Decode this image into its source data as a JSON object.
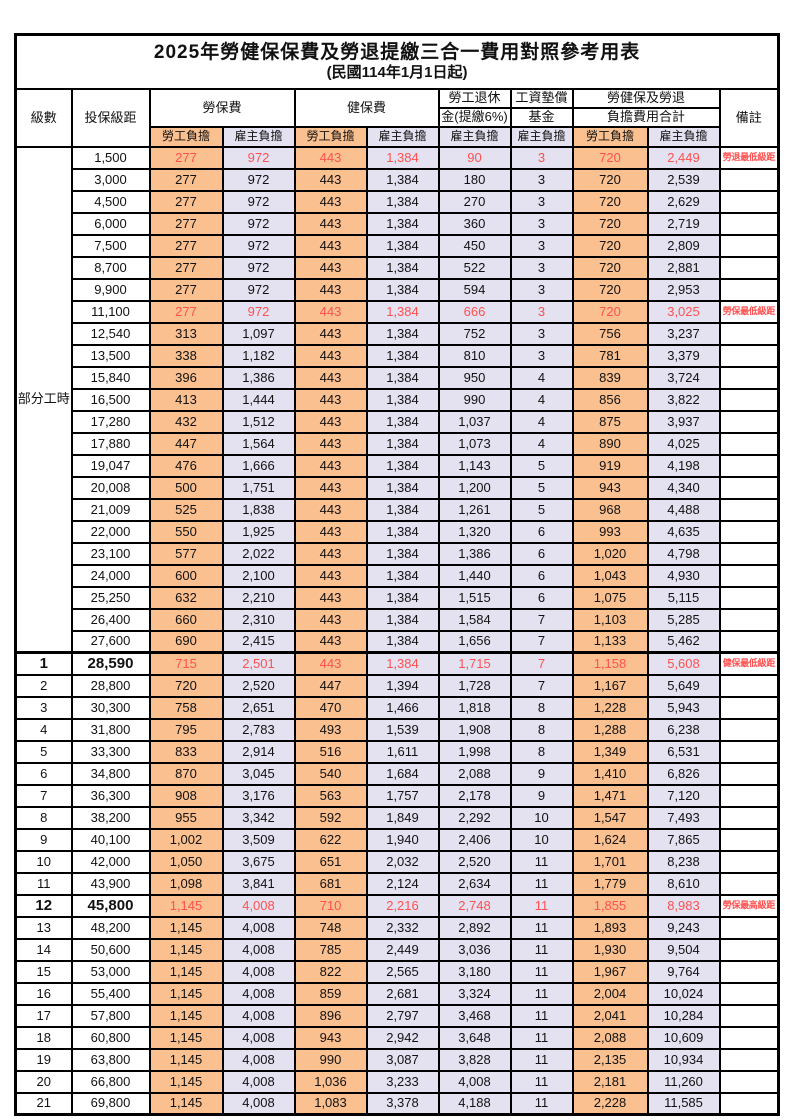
{
  "title": "2025年勞健保保費及勞退提繳三合一費用對照參考用表",
  "subtitle": "(民國114年1月1日起)",
  "colors": {
    "employee_col_bg": "#FAC090",
    "employer_col_bg": "#E4E2F1",
    "highlight_text": "#FF5050",
    "border": "#000000"
  },
  "header": {
    "level": "級數",
    "bracket": "投保級距",
    "labor_insurance": "勞保費",
    "health_insurance": "健保費",
    "pension_line1": "勞工退休",
    "pension_line2": "金(提繳6%)",
    "wage_fund_line1": "工資墊償",
    "wage_fund_line2": "基金",
    "total_line1": "勞健保及勞退",
    "total_line2": "負擔費用合計",
    "remark": "備註",
    "employee_share": "勞工負擔",
    "employer_share": "雇主負擔"
  },
  "group_label": "部分工時",
  "group_rows": 23,
  "rows": [
    {
      "level": "",
      "bracket": "1,500",
      "values": [
        "277",
        "972",
        "443",
        "1,384",
        "90",
        "3",
        "720",
        "2,449"
      ],
      "note": "勞退最低級距",
      "red": true,
      "em": false
    },
    {
      "level": "",
      "bracket": "3,000",
      "values": [
        "277",
        "972",
        "443",
        "1,384",
        "180",
        "3",
        "720",
        "2,539"
      ],
      "note": "",
      "red": false,
      "em": false
    },
    {
      "level": "",
      "bracket": "4,500",
      "values": [
        "277",
        "972",
        "443",
        "1,384",
        "270",
        "3",
        "720",
        "2,629"
      ],
      "note": "",
      "red": false,
      "em": false
    },
    {
      "level": "",
      "bracket": "6,000",
      "values": [
        "277",
        "972",
        "443",
        "1,384",
        "360",
        "3",
        "720",
        "2,719"
      ],
      "note": "",
      "red": false,
      "em": false
    },
    {
      "level": "",
      "bracket": "7,500",
      "values": [
        "277",
        "972",
        "443",
        "1,384",
        "450",
        "3",
        "720",
        "2,809"
      ],
      "note": "",
      "red": false,
      "em": false
    },
    {
      "level": "",
      "bracket": "8,700",
      "values": [
        "277",
        "972",
        "443",
        "1,384",
        "522",
        "3",
        "720",
        "2,881"
      ],
      "note": "",
      "red": false,
      "em": false
    },
    {
      "level": "",
      "bracket": "9,900",
      "values": [
        "277",
        "972",
        "443",
        "1,384",
        "594",
        "3",
        "720",
        "2,953"
      ],
      "note": "",
      "red": false,
      "em": false
    },
    {
      "level": "",
      "bracket": "11,100",
      "values": [
        "277",
        "972",
        "443",
        "1,384",
        "666",
        "3",
        "720",
        "3,025"
      ],
      "note": "勞保最低級距",
      "red": true,
      "em": false
    },
    {
      "level": "",
      "bracket": "12,540",
      "values": [
        "313",
        "1,097",
        "443",
        "1,384",
        "752",
        "3",
        "756",
        "3,237"
      ],
      "note": "",
      "red": false,
      "em": false
    },
    {
      "level": "",
      "bracket": "13,500",
      "values": [
        "338",
        "1,182",
        "443",
        "1,384",
        "810",
        "3",
        "781",
        "3,379"
      ],
      "note": "",
      "red": false,
      "em": false
    },
    {
      "level": "",
      "bracket": "15,840",
      "values": [
        "396",
        "1,386",
        "443",
        "1,384",
        "950",
        "4",
        "839",
        "3,724"
      ],
      "note": "",
      "red": false,
      "em": false
    },
    {
      "level": "",
      "bracket": "16,500",
      "values": [
        "413",
        "1,444",
        "443",
        "1,384",
        "990",
        "4",
        "856",
        "3,822"
      ],
      "note": "",
      "red": false,
      "em": false
    },
    {
      "level": "",
      "bracket": "17,280",
      "values": [
        "432",
        "1,512",
        "443",
        "1,384",
        "1,037",
        "4",
        "875",
        "3,937"
      ],
      "note": "",
      "red": false,
      "em": false
    },
    {
      "level": "",
      "bracket": "17,880",
      "values": [
        "447",
        "1,564",
        "443",
        "1,384",
        "1,073",
        "4",
        "890",
        "4,025"
      ],
      "note": "",
      "red": false,
      "em": false
    },
    {
      "level": "",
      "bracket": "19,047",
      "values": [
        "476",
        "1,666",
        "443",
        "1,384",
        "1,143",
        "5",
        "919",
        "4,198"
      ],
      "note": "",
      "red": false,
      "em": false
    },
    {
      "level": "",
      "bracket": "20,008",
      "values": [
        "500",
        "1,751",
        "443",
        "1,384",
        "1,200",
        "5",
        "943",
        "4,340"
      ],
      "note": "",
      "red": false,
      "em": false
    },
    {
      "level": "",
      "bracket": "21,009",
      "values": [
        "525",
        "1,838",
        "443",
        "1,384",
        "1,261",
        "5",
        "968",
        "4,488"
      ],
      "note": "",
      "red": false,
      "em": false
    },
    {
      "level": "",
      "bracket": "22,000",
      "values": [
        "550",
        "1,925",
        "443",
        "1,384",
        "1,320",
        "6",
        "993",
        "4,635"
      ],
      "note": "",
      "red": false,
      "em": false
    },
    {
      "level": "",
      "bracket": "23,100",
      "values": [
        "577",
        "2,022",
        "443",
        "1,384",
        "1,386",
        "6",
        "1,020",
        "4,798"
      ],
      "note": "",
      "red": false,
      "em": false
    },
    {
      "level": "",
      "bracket": "24,000",
      "values": [
        "600",
        "2,100",
        "443",
        "1,384",
        "1,440",
        "6",
        "1,043",
        "4,930"
      ],
      "note": "",
      "red": false,
      "em": false
    },
    {
      "level": "",
      "bracket": "25,250",
      "values": [
        "632",
        "2,210",
        "443",
        "1,384",
        "1,515",
        "6",
        "1,075",
        "5,115"
      ],
      "note": "",
      "red": false,
      "em": false
    },
    {
      "level": "",
      "bracket": "26,400",
      "values": [
        "660",
        "2,310",
        "443",
        "1,384",
        "1,584",
        "7",
        "1,103",
        "5,285"
      ],
      "note": "",
      "red": false,
      "em": false
    },
    {
      "level": "",
      "bracket": "27,600",
      "values": [
        "690",
        "2,415",
        "443",
        "1,384",
        "1,656",
        "7",
        "1,133",
        "5,462"
      ],
      "note": "",
      "red": false,
      "em": false
    },
    {
      "level": "1",
      "bracket": "28,590",
      "values": [
        "715",
        "2,501",
        "443",
        "1,384",
        "1,715",
        "7",
        "1,158",
        "5,608"
      ],
      "note": "健保最低級距",
      "red": true,
      "em": true
    },
    {
      "level": "2",
      "bracket": "28,800",
      "values": [
        "720",
        "2,520",
        "447",
        "1,394",
        "1,728",
        "7",
        "1,167",
        "5,649"
      ],
      "note": "",
      "red": false,
      "em": false
    },
    {
      "level": "3",
      "bracket": "30,300",
      "values": [
        "758",
        "2,651",
        "470",
        "1,466",
        "1,818",
        "8",
        "1,228",
        "5,943"
      ],
      "note": "",
      "red": false,
      "em": false
    },
    {
      "level": "4",
      "bracket": "31,800",
      "values": [
        "795",
        "2,783",
        "493",
        "1,539",
        "1,908",
        "8",
        "1,288",
        "6,238"
      ],
      "note": "",
      "red": false,
      "em": false
    },
    {
      "level": "5",
      "bracket": "33,300",
      "values": [
        "833",
        "2,914",
        "516",
        "1,611",
        "1,998",
        "8",
        "1,349",
        "6,531"
      ],
      "note": "",
      "red": false,
      "em": false
    },
    {
      "level": "6",
      "bracket": "34,800",
      "values": [
        "870",
        "3,045",
        "540",
        "1,684",
        "2,088",
        "9",
        "1,410",
        "6,826"
      ],
      "note": "",
      "red": false,
      "em": false
    },
    {
      "level": "7",
      "bracket": "36,300",
      "values": [
        "908",
        "3,176",
        "563",
        "1,757",
        "2,178",
        "9",
        "1,471",
        "7,120"
      ],
      "note": "",
      "red": false,
      "em": false
    },
    {
      "level": "8",
      "bracket": "38,200",
      "values": [
        "955",
        "3,342",
        "592",
        "1,849",
        "2,292",
        "10",
        "1,547",
        "7,493"
      ],
      "note": "",
      "red": false,
      "em": false
    },
    {
      "level": "9",
      "bracket": "40,100",
      "values": [
        "1,002",
        "3,509",
        "622",
        "1,940",
        "2,406",
        "10",
        "1,624",
        "7,865"
      ],
      "note": "",
      "red": false,
      "em": false
    },
    {
      "level": "10",
      "bracket": "42,000",
      "values": [
        "1,050",
        "3,675",
        "651",
        "2,032",
        "2,520",
        "11",
        "1,701",
        "8,238"
      ],
      "note": "",
      "red": false,
      "em": false
    },
    {
      "level": "11",
      "bracket": "43,900",
      "values": [
        "1,098",
        "3,841",
        "681",
        "2,124",
        "2,634",
        "11",
        "1,779",
        "8,610"
      ],
      "note": "",
      "red": false,
      "em": false
    },
    {
      "level": "12",
      "bracket": "45,800",
      "values": [
        "1,145",
        "4,008",
        "710",
        "2,216",
        "2,748",
        "11",
        "1,855",
        "8,983"
      ],
      "note": "勞保最高級距",
      "red": true,
      "em": true
    },
    {
      "level": "13",
      "bracket": "48,200",
      "values": [
        "1,145",
        "4,008",
        "748",
        "2,332",
        "2,892",
        "11",
        "1,893",
        "9,243"
      ],
      "note": "",
      "red": false,
      "em": false
    },
    {
      "level": "14",
      "bracket": "50,600",
      "values": [
        "1,145",
        "4,008",
        "785",
        "2,449",
        "3,036",
        "11",
        "1,930",
        "9,504"
      ],
      "note": "",
      "red": false,
      "em": false
    },
    {
      "level": "15",
      "bracket": "53,000",
      "values": [
        "1,145",
        "4,008",
        "822",
        "2,565",
        "3,180",
        "11",
        "1,967",
        "9,764"
      ],
      "note": "",
      "red": false,
      "em": false
    },
    {
      "level": "16",
      "bracket": "55,400",
      "values": [
        "1,145",
        "4,008",
        "859",
        "2,681",
        "3,324",
        "11",
        "2,004",
        "10,024"
      ],
      "note": "",
      "red": false,
      "em": false
    },
    {
      "level": "17",
      "bracket": "57,800",
      "values": [
        "1,145",
        "4,008",
        "896",
        "2,797",
        "3,468",
        "11",
        "2,041",
        "10,284"
      ],
      "note": "",
      "red": false,
      "em": false
    },
    {
      "level": "18",
      "bracket": "60,800",
      "values": [
        "1,145",
        "4,008",
        "943",
        "2,942",
        "3,648",
        "11",
        "2,088",
        "10,609"
      ],
      "note": "",
      "red": false,
      "em": false
    },
    {
      "level": "19",
      "bracket": "63,800",
      "values": [
        "1,145",
        "4,008",
        "990",
        "3,087",
        "3,828",
        "11",
        "2,135",
        "10,934"
      ],
      "note": "",
      "red": false,
      "em": false
    },
    {
      "level": "20",
      "bracket": "66,800",
      "values": [
        "1,145",
        "4,008",
        "1,036",
        "3,233",
        "4,008",
        "11",
        "2,181",
        "11,260"
      ],
      "note": "",
      "red": false,
      "em": false
    },
    {
      "level": "21",
      "bracket": "69,800",
      "values": [
        "1,145",
        "4,008",
        "1,083",
        "3,378",
        "4,188",
        "11",
        "2,228",
        "11,585"
      ],
      "note": "",
      "red": false,
      "em": false
    }
  ]
}
